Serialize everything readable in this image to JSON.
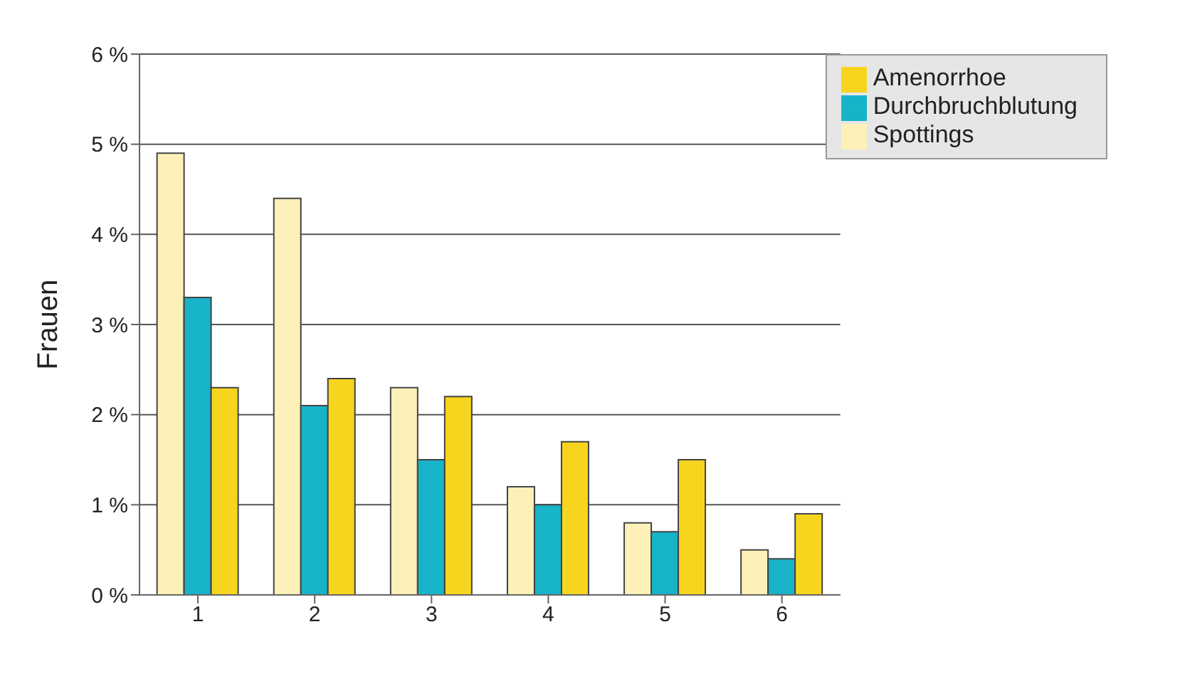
{
  "chart_data": {
    "type": "bar",
    "ylabel": "Frauen",
    "categories": [
      "1",
      "2",
      "3",
      "4",
      "5",
      "6"
    ],
    "series": [
      {
        "name": "Spottings",
        "color": "#fdf0b8",
        "values": [
          4.9,
          4.4,
          2.3,
          1.2,
          0.8,
          0.5
        ]
      },
      {
        "name": "Durchbruchblutung",
        "color": "#17b3c8",
        "values": [
          3.3,
          2.1,
          1.5,
          1.0,
          0.7,
          0.4
        ]
      },
      {
        "name": "Amenorrhoe",
        "color": "#f7d51e",
        "values": [
          2.3,
          2.4,
          2.2,
          1.7,
          1.5,
          0.9
        ]
      }
    ],
    "ylim": [
      0,
      6
    ],
    "yticks": [
      {
        "value": 0,
        "label": "0 %"
      },
      {
        "value": 1,
        "label": "1 %"
      },
      {
        "value": 2,
        "label": "2 %"
      },
      {
        "value": 3,
        "label": "3 %"
      },
      {
        "value": 4,
        "label": "4 %"
      },
      {
        "value": 5,
        "label": "5 %"
      },
      {
        "value": 6,
        "label": "6 %"
      }
    ],
    "grid": "y",
    "legend": "top right"
  }
}
